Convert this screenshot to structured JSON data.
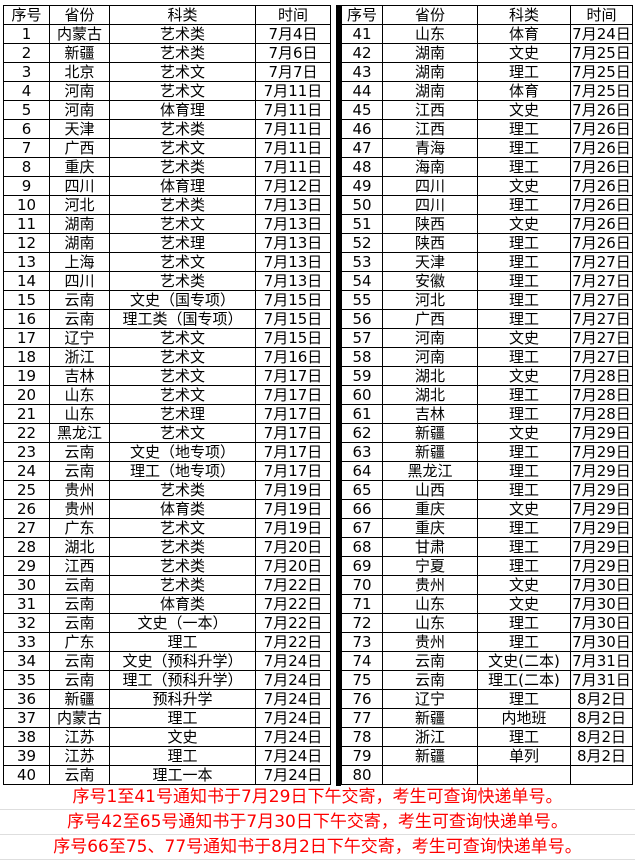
{
  "tables": [
    {
      "name": "schedule-1-40",
      "headers": [
        "序号",
        "省份",
        "科类",
        "时间"
      ],
      "rows": [
        [
          "1",
          "内蒙古",
          "艺术类",
          "7月4日"
        ],
        [
          "2",
          "新疆",
          "艺术类",
          "7月6日"
        ],
        [
          "3",
          "北京",
          "艺术文",
          "7月7日"
        ],
        [
          "4",
          "河南",
          "艺术文",
          "7月11日"
        ],
        [
          "5",
          "河南",
          "体育理",
          "7月11日"
        ],
        [
          "6",
          "天津",
          "艺术类",
          "7月11日"
        ],
        [
          "7",
          "广西",
          "艺术文",
          "7月11日"
        ],
        [
          "8",
          "重庆",
          "艺术类",
          "7月11日"
        ],
        [
          "9",
          "四川",
          "体育理",
          "7月12日"
        ],
        [
          "10",
          "河北",
          "艺术类",
          "7月13日"
        ],
        [
          "11",
          "湖南",
          "艺术文",
          "7月13日"
        ],
        [
          "12",
          "湖南",
          "艺术理",
          "7月13日"
        ],
        [
          "13",
          "上海",
          "艺术文",
          "7月13日"
        ],
        [
          "14",
          "四川",
          "艺术类",
          "7月13日"
        ],
        [
          "15",
          "云南",
          "文史（国专项）",
          "7月15日"
        ],
        [
          "16",
          "云南",
          "理工类（国专项）",
          "7月15日"
        ],
        [
          "17",
          "辽宁",
          "艺术文",
          "7月15日"
        ],
        [
          "18",
          "浙江",
          "艺术文",
          "7月16日"
        ],
        [
          "19",
          "吉林",
          "艺术文",
          "7月17日"
        ],
        [
          "20",
          "山东",
          "艺术文",
          "7月17日"
        ],
        [
          "21",
          "山东",
          "艺术理",
          "7月17日"
        ],
        [
          "22",
          "黑龙江",
          "艺术文",
          "7月17日"
        ],
        [
          "23",
          "云南",
          "文史（地专项）",
          "7月17日"
        ],
        [
          "24",
          "云南",
          "理工（地专项）",
          "7月17日"
        ],
        [
          "25",
          "贵州",
          "艺术类",
          "7月19日"
        ],
        [
          "26",
          "贵州",
          "体育类",
          "7月19日"
        ],
        [
          "27",
          "广东",
          "艺术文",
          "7月19日"
        ],
        [
          "28",
          "湖北",
          "艺术类",
          "7月20日"
        ],
        [
          "29",
          "江西",
          "艺术类",
          "7月20日"
        ],
        [
          "30",
          "云南",
          "艺术类",
          "7月22日"
        ],
        [
          "31",
          "云南",
          "体育类",
          "7月22日"
        ],
        [
          "32",
          "云南",
          "文史（一本）",
          "7月22日"
        ],
        [
          "33",
          "广东",
          "理工",
          "7月22日"
        ],
        [
          "34",
          "云南",
          "文史（预科升学）",
          "7月24日"
        ],
        [
          "35",
          "云南",
          "理工（预科升学）",
          "7月24日"
        ],
        [
          "36",
          "新疆",
          "预科升学",
          "7月24日"
        ],
        [
          "37",
          "内蒙古",
          "理工",
          "7月24日"
        ],
        [
          "38",
          "江苏",
          "文史",
          "7月24日"
        ],
        [
          "39",
          "江苏",
          "理工",
          "7月24日"
        ],
        [
          "40",
          "云南",
          "理工一本",
          "7月24日"
        ]
      ]
    },
    {
      "name": "schedule-41-80",
      "headers": [
        "序号",
        "省份",
        "科类",
        "时间"
      ],
      "rows": [
        [
          "41",
          "山东",
          "体育",
          "7月24日"
        ],
        [
          "42",
          "湖南",
          "文史",
          "7月25日"
        ],
        [
          "43",
          "湖南",
          "理工",
          "7月25日"
        ],
        [
          "44",
          "湖南",
          "体育",
          "7月25日"
        ],
        [
          "45",
          "江西",
          "文史",
          "7月26日"
        ],
        [
          "46",
          "江西",
          "理工",
          "7月26日"
        ],
        [
          "47",
          "青海",
          "理工",
          "7月26日"
        ],
        [
          "48",
          "海南",
          "理工",
          "7月26日"
        ],
        [
          "49",
          "四川",
          "文史",
          "7月26日"
        ],
        [
          "50",
          "四川",
          "理工",
          "7月26日"
        ],
        [
          "51",
          "陕西",
          "文史",
          "7月26日"
        ],
        [
          "52",
          "陕西",
          "理工",
          "7月26日"
        ],
        [
          "53",
          "天津",
          "理工",
          "7月27日"
        ],
        [
          "54",
          "安徽",
          "理工",
          "7月27日"
        ],
        [
          "55",
          "河北",
          "理工",
          "7月27日"
        ],
        [
          "56",
          "广西",
          "理工",
          "7月27日"
        ],
        [
          "57",
          "河南",
          "文史",
          "7月27日"
        ],
        [
          "58",
          "河南",
          "理工",
          "7月27日"
        ],
        [
          "59",
          "湖北",
          "文史",
          "7月28日"
        ],
        [
          "60",
          "湖北",
          "理工",
          "7月28日"
        ],
        [
          "61",
          "吉林",
          "理工",
          "7月28日"
        ],
        [
          "62",
          "新疆",
          "文史",
          "7月29日"
        ],
        [
          "63",
          "新疆",
          "理工",
          "7月29日"
        ],
        [
          "64",
          "黑龙江",
          "理工",
          "7月29日"
        ],
        [
          "65",
          "山西",
          "理工",
          "7月29日"
        ],
        [
          "66",
          "重庆",
          "文史",
          "7月29日"
        ],
        [
          "67",
          "重庆",
          "理工",
          "7月29日"
        ],
        [
          "68",
          "甘肃",
          "理工",
          "7月29日"
        ],
        [
          "69",
          "宁夏",
          "理工",
          "7月29日"
        ],
        [
          "70",
          "贵州",
          "文史",
          "7月30日"
        ],
        [
          "71",
          "山东",
          "文史",
          "7月30日"
        ],
        [
          "72",
          "山东",
          "理工",
          "7月30日"
        ],
        [
          "73",
          "贵州",
          "理工",
          "7月30日"
        ],
        [
          "74",
          "云南",
          "文史(二本)",
          "7月31日"
        ],
        [
          "75",
          "云南",
          "理工(二本)",
          "7月31日"
        ],
        [
          "76",
          "辽宁",
          "理工",
          "8月2日"
        ],
        [
          "77",
          "新疆",
          "内地班",
          "8月2日"
        ],
        [
          "78",
          "浙江",
          "理工",
          "8月2日"
        ],
        [
          "79",
          "新疆",
          "单列",
          "8月2日"
        ],
        [
          "80",
          "",
          "",
          ""
        ]
      ]
    }
  ],
  "notes": [
    "序号1至41号通知书于7月29日下午交寄，考生可查询快递单号。",
    "序号42至65号通知书于7月30日下午交寄，考生可查询快递单号。",
    "序号66至75、77号通知书于8月2日下午交寄，考生可查询快递单号。"
  ],
  "colors": {
    "note_text": "#fe0000",
    "table_border": "#000000",
    "footer_gridline": "#dedede"
  }
}
